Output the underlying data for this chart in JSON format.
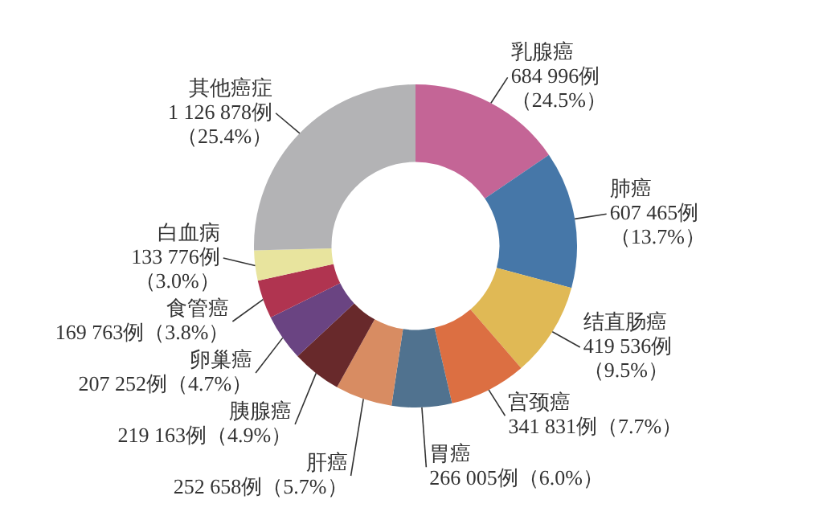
{
  "chart_data": {
    "type": "donut",
    "categories": [
      "乳腺癌",
      "肺癌",
      "结直肠癌",
      "宫颈癌",
      "胃癌",
      "肝癌",
      "胰腺癌",
      "卵巢癌",
      "食管癌",
      "白血病",
      "其他癌症"
    ],
    "values": [
      684996,
      607465,
      419536,
      341831,
      266005,
      252658,
      219163,
      207252,
      169763,
      133776,
      1126878
    ],
    "colors": [
      "#c46596",
      "#4677a8",
      "#e0b955",
      "#dc6f42",
      "#50728f",
      "#d88c62",
      "#68292b",
      "#6a4482",
      "#b03450",
      "#e8e49e",
      "#b3b3b5"
    ],
    "value_labels": [
      "684 996例（24.5%）",
      "607 465例（13.7%）",
      "419 536例（9.5%）",
      "341 831例（7.7%）",
      "266 005例（6.0%）",
      "252 658例（5.7%）",
      "219 163例（4.9%）",
      "207 252例（4.7%）",
      "169 763例（3.8%）",
      "133 776例（3.0%）",
      "1 126 878例（25.4%）"
    ]
  }
}
